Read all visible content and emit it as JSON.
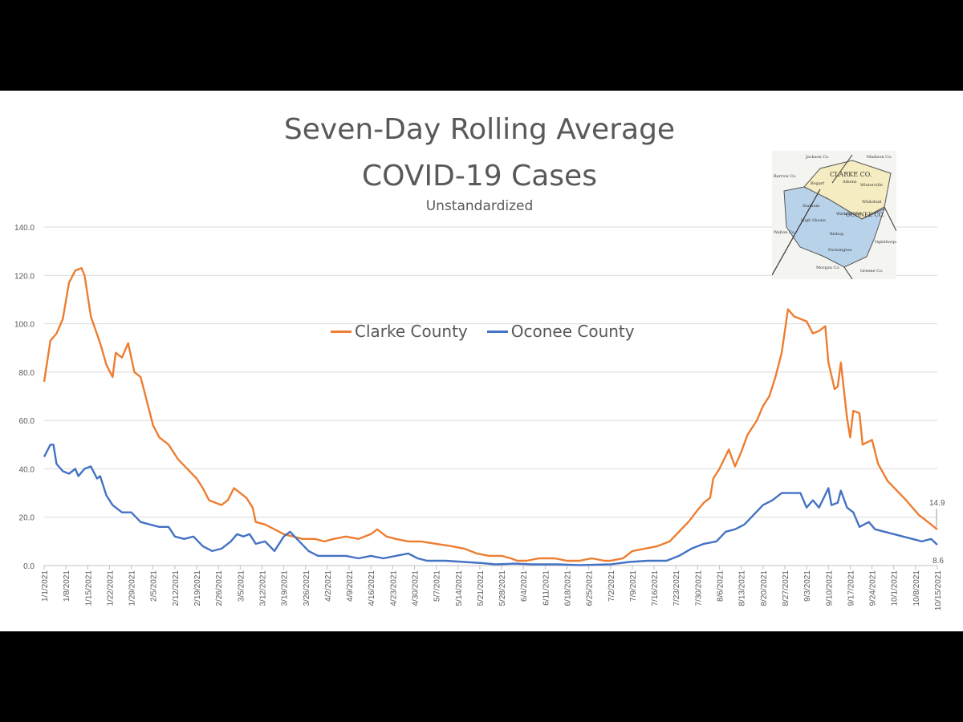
{
  "page": {
    "title_line1": "Seven-Day Rolling Average",
    "title_line2": "COVID-19 Cases",
    "subtitle": "Unstandardized"
  },
  "map_inset": {
    "labels": [
      "Jackson Co.",
      "Madison Co.",
      "CLARKE CO.",
      "Barrow Co.",
      "Bogart",
      "Athens",
      "Winterville",
      "OCONEE CO.",
      "Whitehall",
      "Statham",
      "Watkinsville",
      "Walton Co.",
      "High Shoals",
      "Bishop",
      "Oglethorpe Co.",
      "Farmington",
      "Morgan Co.",
      "Greene Co."
    ]
  },
  "colors": {
    "clarke": "#ED7D31",
    "oconee": "#4472C4",
    "grid": "#D9D9D9",
    "text": "#595959"
  },
  "chart_data": {
    "type": "line",
    "title": "Seven-Day Rolling Average COVID-19 Cases",
    "subtitle": "Unstandardized",
    "ylim": [
      0,
      140
    ],
    "yticks": [
      "0.0",
      "20.0",
      "40.0",
      "60.0",
      "80.0",
      "100.0",
      "120.0",
      "140.0"
    ],
    "xlim": [
      "1/1/2021",
      "10/15/2021"
    ],
    "xtick_labels": [
      "1/1/2021",
      "1/8/2021",
      "1/15/2021",
      "1/22/2021",
      "1/29/2021",
      "2/5/2021",
      "2/12/2021",
      "2/19/2021",
      "2/26/2021",
      "3/5/2021",
      "3/12/2021",
      "3/19/2021",
      "3/26/2021",
      "4/2/2021",
      "4/9/2021",
      "4/16/2021",
      "4/23/2021",
      "4/30/2021",
      "5/7/2021",
      "5/14/2021",
      "5/21/2021",
      "5/28/2021",
      "6/4/2021",
      "6/11/2021",
      "6/18/2021",
      "6/25/2021",
      "7/2/2021",
      "7/9/2021",
      "7/16/2021",
      "7/23/2021",
      "7/30/2021",
      "8/6/2021",
      "8/13/2021",
      "8/20/2021",
      "8/27/2021",
      "9/3/2021",
      "9/10/2021",
      "9/17/2021",
      "9/24/2021",
      "10/1/2021",
      "10/8/2021",
      "10/15/2021"
    ],
    "grid": true,
    "legend_position": "center",
    "series": [
      {
        "name": "Clarke County",
        "points": [
          [
            "1/1/2021",
            76
          ],
          [
            "1/3/2021",
            93
          ],
          [
            "1/5/2021",
            96
          ],
          [
            "1/7/2021",
            102
          ],
          [
            "1/9/2021",
            117
          ],
          [
            "1/11/2021",
            122
          ],
          [
            "1/13/2021",
            123
          ],
          [
            "1/14/2021",
            120
          ],
          [
            "1/16/2021",
            103
          ],
          [
            "1/19/2021",
            92
          ],
          [
            "1/21/2021",
            83
          ],
          [
            "1/23/2021",
            78
          ],
          [
            "1/24/2021",
            88
          ],
          [
            "1/26/2021",
            86
          ],
          [
            "1/28/2021",
            92
          ],
          [
            "1/30/2021",
            80
          ],
          [
            "2/1/2021",
            78
          ],
          [
            "2/3/2021",
            68
          ],
          [
            "2/5/2021",
            58
          ],
          [
            "2/7/2021",
            53
          ],
          [
            "2/10/2021",
            50
          ],
          [
            "2/13/2021",
            44
          ],
          [
            "2/16/2021",
            40
          ],
          [
            "2/19/2021",
            36
          ],
          [
            "2/21/2021",
            32
          ],
          [
            "2/23/2021",
            27
          ],
          [
            "2/25/2021",
            26
          ],
          [
            "2/27/2021",
            25
          ],
          [
            "3/1/2021",
            27
          ],
          [
            "3/3/2021",
            32
          ],
          [
            "3/5/2021",
            30
          ],
          [
            "3/7/2021",
            28
          ],
          [
            "3/9/2021",
            24
          ],
          [
            "3/10/2021",
            18
          ],
          [
            "3/13/2021",
            17
          ],
          [
            "3/16/2021",
            15
          ],
          [
            "3/19/2021",
            13
          ],
          [
            "3/22/2021",
            12
          ],
          [
            "3/25/2021",
            11
          ],
          [
            "3/29/2021",
            11
          ],
          [
            "4/1/2021",
            10
          ],
          [
            "4/4/2021",
            11
          ],
          [
            "4/8/2021",
            12
          ],
          [
            "4/12/2021",
            11
          ],
          [
            "4/16/2021",
            13
          ],
          [
            "4/18/2021",
            15
          ],
          [
            "4/21/2021",
            12
          ],
          [
            "4/24/2021",
            11
          ],
          [
            "4/28/2021",
            10
          ],
          [
            "5/2/2021",
            10
          ],
          [
            "5/7/2021",
            9
          ],
          [
            "5/12/2021",
            8
          ],
          [
            "5/16/2021",
            7
          ],
          [
            "5/20/2021",
            5
          ],
          [
            "5/24/2021",
            4
          ],
          [
            "5/28/2021",
            4
          ],
          [
            "5/31/2021",
            3
          ],
          [
            "6/2/2021",
            2
          ],
          [
            "6/5/2021",
            2
          ],
          [
            "6/9/2021",
            3
          ],
          [
            "6/14/2021",
            3
          ],
          [
            "6/18/2021",
            2
          ],
          [
            "6/22/2021",
            2
          ],
          [
            "6/26/2021",
            3
          ],
          [
            "6/30/2021",
            2
          ],
          [
            "7/2/2021",
            2
          ],
          [
            "7/6/2021",
            3
          ],
          [
            "7/9/2021",
            6
          ],
          [
            "7/13/2021",
            7
          ],
          [
            "7/17/2021",
            8
          ],
          [
            "7/21/2021",
            10
          ],
          [
            "7/24/2021",
            14
          ],
          [
            "7/27/2021",
            18
          ],
          [
            "7/30/2021",
            23
          ],
          [
            "8/1/2021",
            26
          ],
          [
            "8/3/2021",
            28
          ],
          [
            "8/4/2021",
            36
          ],
          [
            "8/6/2021",
            40
          ],
          [
            "8/9/2021",
            48
          ],
          [
            "8/11/2021",
            41
          ],
          [
            "8/13/2021",
            47
          ],
          [
            "8/15/2021",
            54
          ],
          [
            "8/18/2021",
            60
          ],
          [
            "8/20/2021",
            66
          ],
          [
            "8/22/2021",
            70
          ],
          [
            "8/24/2021",
            78
          ],
          [
            "8/26/2021",
            88
          ],
          [
            "8/28/2021",
            106
          ],
          [
            "8/30/2021",
            103
          ],
          [
            "9/1/2021",
            102
          ],
          [
            "9/3/2021",
            101
          ],
          [
            "9/5/2021",
            96
          ],
          [
            "9/7/2021",
            97
          ],
          [
            "9/9/2021",
            99
          ],
          [
            "9/10/2021",
            84
          ],
          [
            "9/12/2021",
            73
          ],
          [
            "9/13/2021",
            74
          ],
          [
            "9/14/2021",
            84
          ],
          [
            "9/16/2021",
            61
          ],
          [
            "9/17/2021",
            53
          ],
          [
            "9/18/2021",
            64
          ],
          [
            "9/20/2021",
            63
          ],
          [
            "9/21/2021",
            50
          ],
          [
            "9/24/2021",
            52
          ],
          [
            "9/26/2021",
            42
          ],
          [
            "9/29/2021",
            35
          ],
          [
            "10/2/2021",
            31
          ],
          [
            "10/5/2021",
            27
          ],
          [
            "10/7/2021",
            24
          ],
          [
            "10/9/2021",
            21
          ],
          [
            "10/11/2021",
            19
          ],
          [
            "10/13/2021",
            17
          ],
          [
            "10/15/2021",
            14.9
          ]
        ]
      },
      {
        "name": "Oconee County",
        "points": [
          [
            "1/1/2021",
            45
          ],
          [
            "1/3/2021",
            50
          ],
          [
            "1/4/2021",
            50
          ],
          [
            "1/5/2021",
            42
          ],
          [
            "1/7/2021",
            39
          ],
          [
            "1/9/2021",
            38
          ],
          [
            "1/11/2021",
            40
          ],
          [
            "1/12/2021",
            37
          ],
          [
            "1/14/2021",
            40
          ],
          [
            "1/16/2021",
            41
          ],
          [
            "1/18/2021",
            36
          ],
          [
            "1/19/2021",
            37
          ],
          [
            "1/21/2021",
            29
          ],
          [
            "1/23/2021",
            25
          ],
          [
            "1/26/2021",
            22
          ],
          [
            "1/29/2021",
            22
          ],
          [
            "2/1/2021",
            18
          ],
          [
            "2/4/2021",
            17
          ],
          [
            "2/7/2021",
            16
          ],
          [
            "2/10/2021",
            16
          ],
          [
            "2/12/2021",
            12
          ],
          [
            "2/15/2021",
            11
          ],
          [
            "2/18/2021",
            12
          ],
          [
            "2/21/2021",
            8
          ],
          [
            "2/24/2021",
            6
          ],
          [
            "2/27/2021",
            7
          ],
          [
            "3/2/2021",
            10
          ],
          [
            "3/4/2021",
            13
          ],
          [
            "3/6/2021",
            12
          ],
          [
            "3/8/2021",
            13
          ],
          [
            "3/10/2021",
            9
          ],
          [
            "3/13/2021",
            10
          ],
          [
            "3/16/2021",
            6
          ],
          [
            "3/19/2021",
            12
          ],
          [
            "3/21/2021",
            14
          ],
          [
            "3/24/2021",
            10
          ],
          [
            "3/27/2021",
            6
          ],
          [
            "3/30/2021",
            4
          ],
          [
            "4/2/2021",
            4
          ],
          [
            "4/8/2021",
            4
          ],
          [
            "4/12/2021",
            3
          ],
          [
            "4/16/2021",
            4
          ],
          [
            "4/20/2021",
            3
          ],
          [
            "4/24/2021",
            4
          ],
          [
            "4/28/2021",
            5
          ],
          [
            "5/1/2021",
            3
          ],
          [
            "5/4/2021",
            2
          ],
          [
            "5/10/2021",
            2
          ],
          [
            "5/16/2021",
            1.5
          ],
          [
            "5/22/2021",
            1
          ],
          [
            "5/26/2021",
            0.5
          ],
          [
            "6/1/2021",
            0.8
          ],
          [
            "6/7/2021",
            0.5
          ],
          [
            "6/15/2021",
            0.5
          ],
          [
            "6/22/2021",
            0.2
          ],
          [
            "7/2/2021",
            0.5
          ],
          [
            "7/8/2021",
            1.5
          ],
          [
            "7/14/2021",
            2
          ],
          [
            "7/20/2021",
            2
          ],
          [
            "7/24/2021",
            4
          ],
          [
            "7/28/2021",
            7
          ],
          [
            "8/1/2021",
            9
          ],
          [
            "8/5/2021",
            10
          ],
          [
            "8/8/2021",
            14
          ],
          [
            "8/11/2021",
            15
          ],
          [
            "8/14/2021",
            17
          ],
          [
            "8/17/2021",
            21
          ],
          [
            "8/20/2021",
            25
          ],
          [
            "8/23/2021",
            27
          ],
          [
            "8/26/2021",
            30
          ],
          [
            "8/29/2021",
            30
          ],
          [
            "9/1/2021",
            30
          ],
          [
            "9/3/2021",
            24
          ],
          [
            "9/5/2021",
            27
          ],
          [
            "9/7/2021",
            24
          ],
          [
            "9/10/2021",
            32
          ],
          [
            "9/11/2021",
            25
          ],
          [
            "9/13/2021",
            26
          ],
          [
            "9/14/2021",
            31
          ],
          [
            "9/16/2021",
            24
          ],
          [
            "9/18/2021",
            22
          ],
          [
            "9/20/2021",
            16
          ],
          [
            "9/23/2021",
            18
          ],
          [
            "9/25/2021",
            15
          ],
          [
            "9/28/2021",
            14
          ],
          [
            "10/1/2021",
            13
          ],
          [
            "10/4/2021",
            12
          ],
          [
            "10/7/2021",
            11
          ],
          [
            "10/10/2021",
            10
          ],
          [
            "10/13/2021",
            11
          ],
          [
            "10/15/2021",
            8.6
          ]
        ]
      }
    ],
    "end_labels": {
      "clarke": "14.9",
      "oconee": "8.6"
    }
  }
}
